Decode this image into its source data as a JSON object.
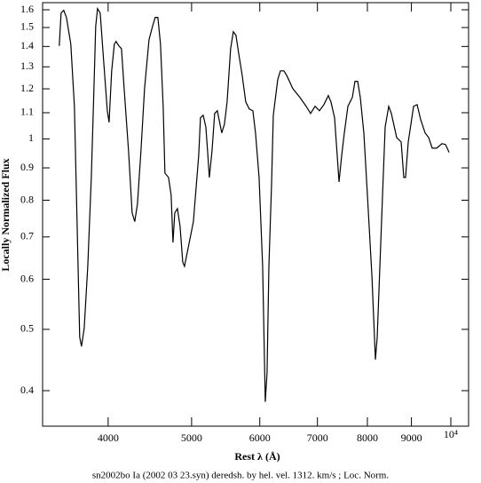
{
  "chart_data": {
    "type": "line",
    "x_label": "Rest λ (Å)",
    "y_label": "Locally Normalized Flux",
    "caption": "sn2002bo Ia (2002 03 23.syn) deredsh. by hel. vel.  1312. km/s ;  Loc. Norm.",
    "xscale": "log",
    "yscale": "log",
    "color": "#000000",
    "xlim": [
      3357,
      10486
    ],
    "ylim": [
      0.3515,
      1.642
    ],
    "xticks": [
      4000,
      5000,
      6000,
      7000,
      8000,
      9000,
      {
        "value": 10000,
        "label": "10⁴"
      }
    ],
    "yticks": [
      0.4,
      0.5,
      0.6,
      0.7,
      0.8,
      0.9,
      1,
      1.1,
      1.2,
      1.3,
      1.4,
      1.5,
      1.6
    ],
    "x": [
      3510,
      3527,
      3552,
      3578,
      3620,
      3655,
      3681,
      3707,
      3725,
      3752,
      3788,
      3824,
      3851,
      3869,
      3888,
      3916,
      3953,
      3991,
      4010,
      4038,
      4067,
      4086,
      4116,
      4145,
      4175,
      4224,
      4265,
      4295,
      4326,
      4367,
      4409,
      4462,
      4504,
      4536,
      4569,
      4601,
      4634,
      4656,
      4701,
      4734,
      4757,
      4780,
      4814,
      4848,
      4883,
      4906,
      4953,
      5024,
      5096,
      5120,
      5157,
      5194,
      5218,
      5243,
      5281,
      5318,
      5356,
      5395,
      5420,
      5459,
      5498,
      5550,
      5590,
      5630,
      5670,
      5724,
      5779,
      5834,
      5890,
      5932,
      5989,
      6046,
      6089,
      6118,
      6148,
      6191,
      6221,
      6295,
      6340,
      6400,
      6446,
      6554,
      6680,
      6792,
      6873,
      6955,
      7038,
      7122,
      7207,
      7258,
      7328,
      7380,
      7416,
      7469,
      7522,
      7594,
      7685,
      7739,
      7795,
      7850,
      7925,
      8001,
      8097,
      8174,
      8213,
      8272,
      8331,
      8390,
      8470,
      8530,
      8652,
      8756,
      8818,
      8860,
      8924,
      9052,
      9138,
      9225,
      9335,
      9424,
      9514,
      9628,
      9766,
      9859,
      9953
    ],
    "values": [
      1.403,
      1.581,
      1.597,
      1.556,
      1.412,
      1.126,
      0.74,
      0.486,
      0.47,
      0.502,
      0.629,
      0.869,
      1.201,
      1.506,
      1.607,
      1.581,
      1.324,
      1.108,
      1.062,
      1.281,
      1.412,
      1.426,
      1.403,
      1.389,
      1.201,
      0.958,
      0.764,
      0.74,
      0.789,
      0.958,
      1.201,
      1.435,
      1.506,
      1.556,
      1.556,
      1.412,
      1.126,
      0.883,
      0.869,
      0.815,
      0.686,
      0.764,
      0.776,
      0.728,
      0.639,
      0.629,
      0.671,
      0.74,
      0.942,
      1.08,
      1.09,
      1.045,
      0.958,
      0.869,
      0.958,
      1.097,
      1.108,
      1.055,
      1.022,
      1.055,
      1.144,
      1.389,
      1.477,
      1.458,
      1.367,
      1.261,
      1.144,
      1.115,
      1.108,
      1.022,
      0.869,
      0.629,
      0.384,
      0.427,
      0.629,
      0.842,
      1.09,
      1.241,
      1.281,
      1.281,
      1.261,
      1.201,
      1.163,
      1.126,
      1.097,
      1.126,
      1.108,
      1.133,
      1.171,
      1.144,
      1.08,
      0.942,
      0.855,
      0.942,
      1.022,
      1.126,
      1.163,
      1.233,
      1.233,
      1.163,
      1.022,
      0.815,
      0.609,
      0.448,
      0.486,
      0.629,
      0.815,
      1.045,
      1.126,
      1.097,
      1.005,
      0.989,
      0.869,
      0.869,
      0.989,
      1.126,
      1.133,
      1.073,
      1.022,
      1.005,
      0.967,
      0.967,
      0.983,
      0.98,
      0.952
    ]
  }
}
